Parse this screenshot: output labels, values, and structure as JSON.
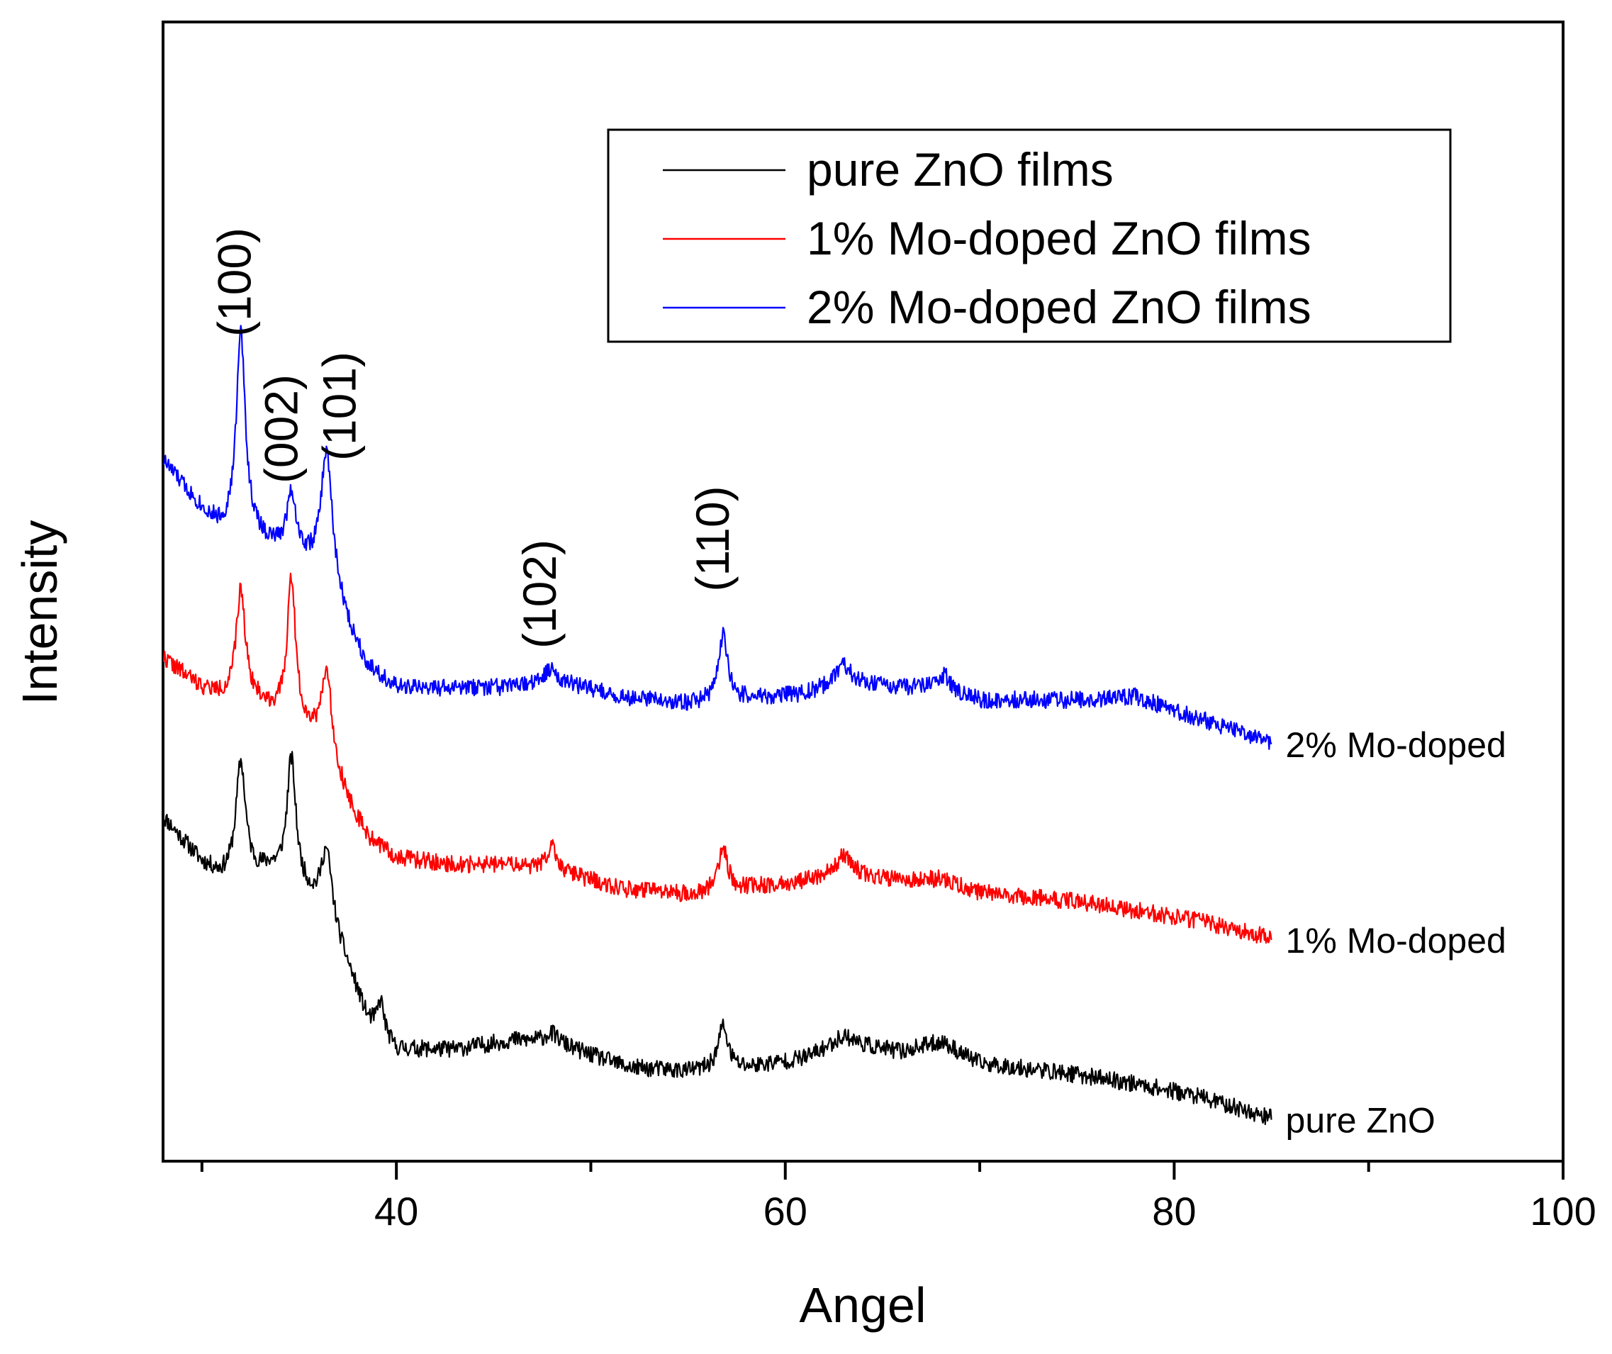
{
  "chart_data": {
    "type": "line",
    "title": "",
    "xlabel": "Angel",
    "ylabel": "Intensity",
    "xlim": [
      28,
      100
    ],
    "ylim": [
      0,
      100
    ],
    "y_ticks_shown": false,
    "x_ticks": [
      40,
      60,
      80,
      100
    ],
    "x_minor_ticks": [
      30,
      50,
      70,
      90
    ],
    "legend": {
      "placement": "top-right",
      "entries": [
        "pure ZnO films",
        "1% Mo-doped ZnO films",
        "2% Mo-doped ZnO films"
      ]
    },
    "peak_labels": [
      {
        "text": "(100)",
        "x": 32.5
      },
      {
        "text": "(002)",
        "x": 34.9
      },
      {
        "text": "(101)",
        "x": 37.9
      },
      {
        "text": "(102)",
        "x": 48.2
      },
      {
        "text": "(110)",
        "x": 57.1
      }
    ],
    "series": [
      {
        "name": "pure ZnO films",
        "end_label": "pure ZnO",
        "color": "#000000",
        "seed": 11,
        "noise": 0.75,
        "baseline": [
          [
            28,
            30.2
          ],
          [
            30,
            26.2
          ],
          [
            31,
            25.0
          ],
          [
            32.5,
            25.0
          ],
          [
            33.5,
            25.5
          ],
          [
            34.7,
            24.2
          ],
          [
            35.5,
            23.0
          ],
          [
            36.6,
            20.5
          ],
          [
            37.5,
            17.0
          ],
          [
            38.5,
            12.5
          ],
          [
            40,
            9.8
          ],
          [
            43,
            9.8
          ],
          [
            46,
            10.6
          ],
          [
            48,
            10.4
          ],
          [
            52,
            8.2
          ],
          [
            55,
            7.9
          ],
          [
            58,
            8.2
          ],
          [
            61,
            9.0
          ],
          [
            63,
            10.2
          ],
          [
            66,
            9.6
          ],
          [
            68,
            10.5
          ],
          [
            70,
            8.6
          ],
          [
            75,
            7.6
          ],
          [
            78,
            6.8
          ],
          [
            81,
            5.8
          ],
          [
            85,
            3.8
          ]
        ],
        "peaks": [
          {
            "x": 32.0,
            "h": 10.0,
            "w": 0.3
          },
          {
            "x": 34.6,
            "h": 10.8,
            "w": 0.28
          },
          {
            "x": 36.4,
            "h": 6.2,
            "w": 0.35
          },
          {
            "x": 39.2,
            "h": 2.8,
            "w": 0.2
          },
          {
            "x": 56.8,
            "h": 3.8,
            "w": 0.3
          },
          {
            "x": 48.0,
            "h": 0.8,
            "w": 0.5
          },
          {
            "x": 63.0,
            "h": 0.8,
            "w": 0.8
          }
        ]
      },
      {
        "name": "1% Mo-doped ZnO films",
        "end_label": "1% Mo-doped",
        "color": "#ff0000",
        "seed": 22,
        "noise": 0.75,
        "baseline": [
          [
            28,
            44.2
          ],
          [
            30,
            41.5
          ],
          [
            31,
            40.8
          ],
          [
            32.5,
            40.5
          ],
          [
            33.5,
            39.6
          ],
          [
            34.7,
            38.5
          ],
          [
            35.5,
            37.5
          ],
          [
            36.6,
            35.0
          ],
          [
            37.5,
            31.5
          ],
          [
            38.5,
            28.4
          ],
          [
            40,
            26.6
          ],
          [
            43,
            26.0
          ],
          [
            46,
            26.0
          ],
          [
            48,
            25.5
          ],
          [
            52,
            23.8
          ],
          [
            55,
            23.4
          ],
          [
            58,
            24.0
          ],
          [
            61,
            24.6
          ],
          [
            63,
            25.3
          ],
          [
            66,
            24.6
          ],
          [
            68,
            24.8
          ],
          [
            70,
            23.6
          ],
          [
            75,
            22.8
          ],
          [
            78,
            22.0
          ],
          [
            81,
            21.2
          ],
          [
            85,
            19.6
          ]
        ],
        "peaks": [
          {
            "x": 32.0,
            "h": 9.5,
            "w": 0.28
          },
          {
            "x": 34.6,
            "h": 12.5,
            "w": 0.26
          },
          {
            "x": 36.4,
            "h": 7.5,
            "w": 0.33
          },
          {
            "x": 48.0,
            "h": 2.3,
            "w": 0.3
          },
          {
            "x": 56.8,
            "h": 3.8,
            "w": 0.28
          },
          {
            "x": 63.0,
            "h": 1.5,
            "w": 0.5
          }
        ]
      },
      {
        "name": "2% Mo-doped ZnO films",
        "end_label": "2% Mo-doped",
        "color": "#0000ff",
        "seed": 33,
        "noise": 0.75,
        "baseline": [
          [
            28,
            61.5
          ],
          [
            30,
            57.2
          ],
          [
            31,
            55.4
          ],
          [
            32.5,
            55.0
          ],
          [
            33.5,
            54.0
          ],
          [
            34.7,
            53.2
          ],
          [
            35.5,
            52.5
          ],
          [
            36.6,
            51.5
          ],
          [
            37.5,
            47.0
          ],
          [
            38.5,
            43.5
          ],
          [
            40,
            41.5
          ],
          [
            43,
            41.5
          ],
          [
            46,
            41.6
          ],
          [
            48,
            42.2
          ],
          [
            52,
            40.6
          ],
          [
            55,
            40.2
          ],
          [
            58,
            40.6
          ],
          [
            61,
            41.0
          ],
          [
            63,
            42.0
          ],
          [
            66,
            41.6
          ],
          [
            68,
            41.6
          ],
          [
            70,
            40.5
          ],
          [
            75,
            40.5
          ],
          [
            78,
            40.8
          ],
          [
            81,
            39.0
          ],
          [
            85,
            36.8
          ]
        ],
        "peaks": [
          {
            "x": 32.0,
            "h": 17.5,
            "w": 0.28
          },
          {
            "x": 34.6,
            "h": 5.3,
            "w": 0.28
          },
          {
            "x": 36.4,
            "h": 10.5,
            "w": 0.33
          },
          {
            "x": 48.0,
            "h": 1.0,
            "w": 0.4
          },
          {
            "x": 56.8,
            "h": 5.8,
            "w": 0.28
          },
          {
            "x": 63.0,
            "h": 1.5,
            "w": 0.5
          },
          {
            "x": 68.2,
            "h": 1.2,
            "w": 0.3
          }
        ]
      }
    ]
  }
}
